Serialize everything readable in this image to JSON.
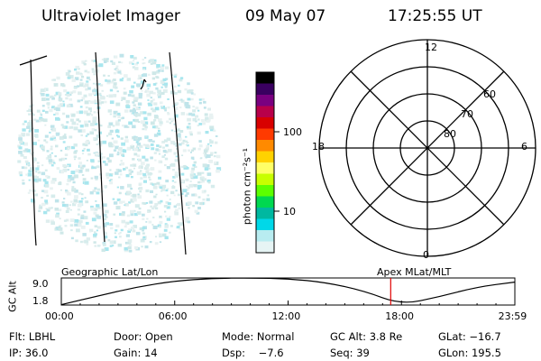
{
  "header": {
    "instrument": "Ultraviolet Imager",
    "date": "09 May 07",
    "time": "17:25:55 UT"
  },
  "colorbar": {
    "label": "photon cm⁻²s⁻¹",
    "ticks": [
      "100",
      "10"
    ],
    "colors": [
      "#000000",
      "#3a0060",
      "#7a0080",
      "#b8004a",
      "#d80000",
      "#ff3a00",
      "#ff8a00",
      "#ffd200",
      "#ffff66",
      "#c8ff00",
      "#5cff00",
      "#00d850",
      "#00b8a0",
      "#00d8e8",
      "#b8ecf0",
      "#e6f4f4"
    ]
  },
  "polar": {
    "mlt_labels": {
      "top": "12",
      "left": "18",
      "right": "6",
      "bottom": "0"
    },
    "lat_labels": [
      "60",
      "70",
      "80"
    ]
  },
  "altplot": {
    "left_title": "Geographic Lat/Lon",
    "right_title": "Apex MLat/MLT",
    "ylabel": "GC Alt",
    "yticks": [
      "9.0",
      "1.8"
    ],
    "xticks": [
      "00:00",
      "06:00",
      "12:00",
      "18:00",
      "23:59"
    ],
    "marker_time_hours": 17.43,
    "altitude_curve": {
      "hours": [
        0,
        2,
        4,
        6,
        8,
        10,
        12,
        14,
        16,
        18,
        20,
        22,
        23.98
      ],
      "re": [
        1.9,
        4.3,
        6.6,
        8.2,
        8.9,
        9.0,
        8.8,
        7.8,
        5.6,
        1.9,
        4.0,
        6.6,
        7.9
      ]
    }
  },
  "footer": {
    "row1": [
      "Flt: LBHL",
      "Door: Open",
      "Mode: Normal",
      "GC Alt: 3.8 Re",
      "GLat: −16.7"
    ],
    "row2": [
      "IP: 36.0",
      "Gain: 14",
      "Dsp:    −7.6",
      "Seq: 39",
      "GLon: 195.5"
    ]
  }
}
